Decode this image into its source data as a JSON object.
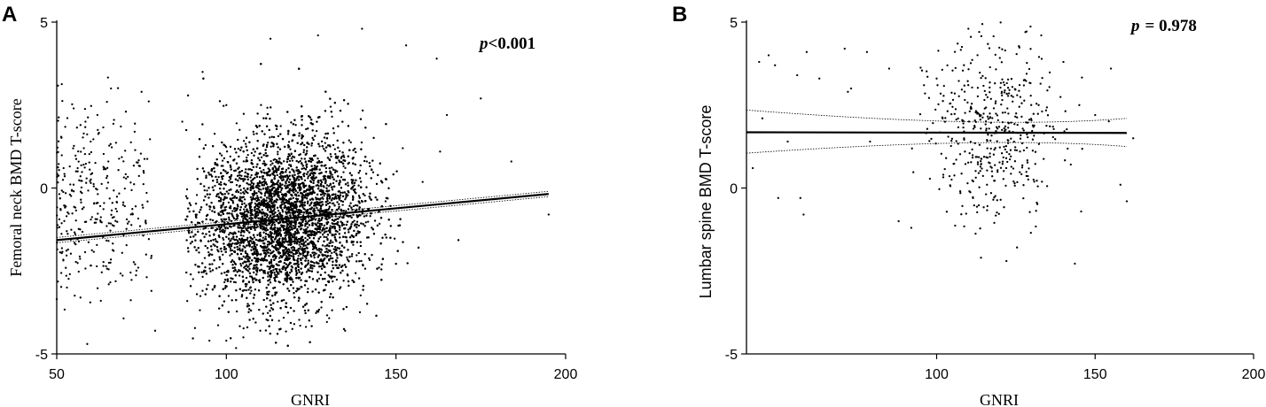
{
  "chart_data": [
    {
      "panel_label": "A",
      "type": "scatter",
      "xlabel": "GNRI",
      "ylabel": "Femoral neck BMD T-score",
      "xlim": [
        50,
        200
      ],
      "ylim": [
        -5,
        5
      ],
      "xticks": [
        "50",
        "100",
        "150",
        "200"
      ],
      "yticks": [
        "-5",
        "0",
        "5"
      ],
      "annotation": {
        "p_symbol": "p",
        "p_value": "<0.001"
      },
      "regression": {
        "x": [
          50,
          195
        ],
        "y": [
          -1.57,
          -0.18
        ],
        "ci_halfwidth_ends": 0.08
      },
      "cloud": {
        "n_points": 7000,
        "x_center": 117,
        "x_sd": 12,
        "y_intercept": -1.57,
        "y_slope": 0.0096,
        "y_sd": 1.25,
        "x_min": 88,
        "x_max": 170
      },
      "low_gnri_group": {
        "n_points": 330,
        "x_min": 50,
        "x_max": 78,
        "y_mean": -0.4,
        "y_sd": 1.3
      },
      "sample_points": [
        [
          55,
          2.4
        ],
        [
          62,
          2.2
        ],
        [
          57,
          1.9
        ],
        [
          60,
          1.4
        ],
        [
          58,
          1.2
        ],
        [
          75,
          2.9
        ],
        [
          66,
          3.0
        ],
        [
          52,
          0.6
        ],
        [
          55,
          -0.1
        ],
        [
          53,
          -3.0
        ],
        [
          59,
          -4.7
        ],
        [
          63,
          -3.4
        ],
        [
          57,
          -3.3
        ],
        [
          79,
          -4.3
        ],
        [
          93,
          3.5
        ],
        [
          100,
          2.5
        ],
        [
          87,
          2.0
        ],
        [
          140,
          4.8
        ],
        [
          127,
          4.6
        ],
        [
          113,
          4.5
        ],
        [
          153,
          4.3
        ],
        [
          162,
          3.9
        ],
        [
          165,
          2.2
        ],
        [
          175,
          2.7
        ],
        [
          184,
          0.8
        ],
        [
          195,
          -0.8
        ],
        [
          163,
          1.1
        ],
        [
          152,
          1.2
        ],
        [
          95,
          -4.6
        ],
        [
          100,
          -4.6
        ],
        [
          105,
          -4.5
        ],
        [
          110,
          -4.3
        ],
        [
          120,
          -4.1
        ],
        [
          135,
          -4.3
        ],
        [
          128,
          -3.6
        ],
        [
          145,
          -2.4
        ]
      ]
    },
    {
      "panel_label": "B",
      "type": "scatter",
      "xlabel": "GNRI",
      "ylabel": "Lumbar spine BMD T-score",
      "xlim": [
        40,
        200
      ],
      "ylim": [
        -5,
        5
      ],
      "xticks": [
        "100",
        "150",
        "200"
      ],
      "yticks": [
        "-5",
        "0",
        "5"
      ],
      "annotation": {
        "p_symbol": "p",
        "p_value": "= 0.978"
      },
      "regression": {
        "x": [
          40,
          160
        ],
        "y": [
          1.68,
          1.66
        ],
        "ci_upper": [
          2.35,
          2.1
        ],
        "ci_lower": [
          1.05,
          1.25
        ],
        "ci_pivot_x": 118
      },
      "cloud": {
        "n_points": 480,
        "x_center": 118,
        "x_sd": 10,
        "y_mean": 1.65,
        "y_sd": 1.3,
        "x_min": 90,
        "x_max": 160
      },
      "sample_points": [
        [
          42,
          0.6
        ],
        [
          44,
          3.8
        ],
        [
          45,
          2.1
        ],
        [
          47,
          4.0
        ],
        [
          49,
          3.7
        ],
        [
          53,
          1.4
        ],
        [
          56,
          3.4
        ],
        [
          59,
          4.1
        ],
        [
          63,
          3.3
        ],
        [
          50,
          -0.3
        ],
        [
          57,
          -0.3
        ],
        [
          58,
          -0.8
        ],
        [
          71,
          4.2
        ],
        [
          73,
          3.0
        ],
        [
          72,
          2.9
        ],
        [
          78,
          4.1
        ],
        [
          79,
          1.4
        ],
        [
          85,
          3.6
        ],
        [
          88,
          -1.0
        ],
        [
          92,
          -1.2
        ],
        [
          96,
          3.1
        ],
        [
          100,
          3.3
        ],
        [
          103,
          0.9
        ],
        [
          110,
          4.8
        ],
        [
          114,
          -2.1
        ],
        [
          122,
          -2.2
        ],
        [
          128,
          4.7
        ],
        [
          133,
          4.6
        ],
        [
          140,
          3.8
        ],
        [
          145,
          2.5
        ],
        [
          150,
          2.2
        ],
        [
          155,
          3.6
        ],
        [
          158,
          0.1
        ],
        [
          160,
          -0.4
        ],
        [
          162,
          1.5
        ]
      ]
    }
  ]
}
